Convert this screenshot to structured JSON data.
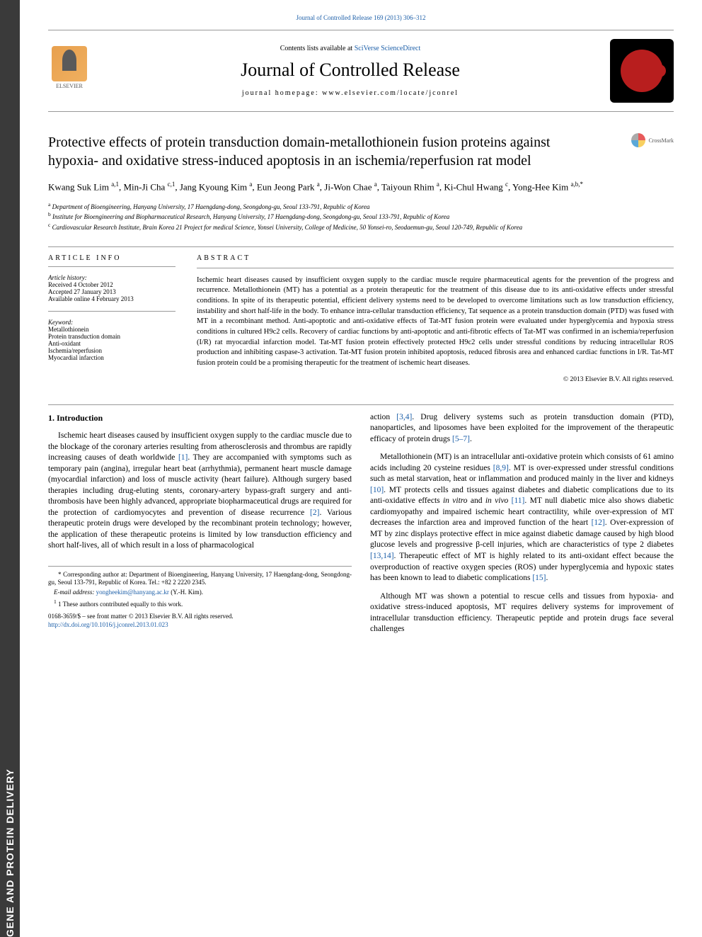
{
  "sideTab": "GENE AND PROTEIN DELIVERY",
  "header": {
    "topLinkPrefix": "Journal of Controlled Release 169 (2013) 306–312",
    "contentsPrefix": "Contents lists available at ",
    "contentsLink": "SciVerse ScienceDirect",
    "journalName": "Journal of Controlled Release",
    "homepagePrefix": "journal homepage: ",
    "homepage": "www.elsevier.com/locate/jconrel",
    "elsevierLabel": "ELSEVIER"
  },
  "crossmark": "CrossMark",
  "title": "Protective effects of protein transduction domain-metallothionein fusion proteins against hypoxia- and oxidative stress-induced apoptosis in an ischemia/reperfusion rat model",
  "authors": "Kwang Suk Lim <sup>a,1</sup>, Min-Ji Cha <sup>c,1</sup>, Jang Kyoung Kim <sup>a</sup>, Eun Jeong Park <sup>a</sup>, Ji-Won Chae <sup>a</sup>, Taiyoun Rhim <sup>a</sup>, Ki-Chul Hwang <sup>c</sup>, Yong-Hee Kim <sup>a,b,*</sup>",
  "affiliations": {
    "a": "Department of Bioengineering, Hanyang University, 17 Haengdang-dong, Seongdong-gu, Seoul 133-791, Republic of Korea",
    "b": "Institute for Bioengineering and Biopharmaceutical Research, Hanyang University, 17 Haengdang-dong, Seongdong-gu, Seoul 133-791, Republic of Korea",
    "c": "Cardiovascular Research Institute, Brain Korea 21 Project for medical Science, Yonsei University, College of Medicine, 50 Yonsei-ro, Seodaemun-gu, Seoul 120-749, Republic of Korea"
  },
  "articleInfo": {
    "heading": "article info",
    "historyLabel": "Article history:",
    "received": "Received 4 October 2012",
    "accepted": "Accepted 27 January 2013",
    "available": "Available online 4 February 2013",
    "keywordLabel": "Keyword:",
    "keywords": [
      "Metallothionein",
      "Protein transduction domain",
      "Anti-oxidant",
      "Ischemia/reperfusion",
      "Myocardial infarction"
    ]
  },
  "abstract": {
    "heading": "abstract",
    "text": "Ischemic heart diseases caused by insufficient oxygen supply to the cardiac muscle require pharmaceutical agents for the prevention of the progress and recurrence. Metallothionein (MT) has a potential as a protein therapeutic for the treatment of this disease due to its anti-oxidative effects under stressful conditions. In spite of its therapeutic potential, efficient delivery systems need to be developed to overcome limitations such as low transduction efficiency, instability and short half-life in the body. To enhance intra-cellular transduction efficiency, Tat sequence as a protein transduction domain (PTD) was fused with MT in a recombinant method. Anti-apoptotic and anti-oxidative effects of Tat-MT fusion protein were evaluated under hyperglycemia and hypoxia stress conditions in cultured H9c2 cells. Recovery of cardiac functions by anti-apoptotic and anti-fibrotic effects of Tat-MT was confirmed in an ischemia/reperfusion (I/R) rat myocardial infarction model. Tat-MT fusion protein effectively protected H9c2 cells under stressful conditions by reducing intracellular ROS production and inhibiting caspase-3 activation. Tat-MT fusion protein inhibited apoptosis, reduced fibrosis area and enhanced cardiac functions in I/R. Tat-MT fusion protein could be a promising therapeutic for the treatment of ischemic heart diseases.",
    "copyright": "© 2013 Elsevier B.V. All rights reserved."
  },
  "body": {
    "introHeading": "1. Introduction",
    "leftP1": "Ischemic heart diseases caused by insufficient oxygen supply to the cardiac muscle due to the blockage of the coronary arteries resulting from atherosclerosis and thrombus are rapidly increasing causes of death worldwide [1]. They are accompanied with symptoms such as temporary pain (angina), irregular heart beat (arrhythmia), permanent heart muscle damage (myocardial infarction) and loss of muscle activity (heart failure). Although surgery based therapies including drug-eluting stents, coronary-artery bypass-graft surgery and anti-thrombosis have been highly advanced, appropriate biopharmaceutical drugs are required for the protection of cardiomyocytes and prevention of disease recurrence [2]. Various therapeutic protein drugs were developed by the recombinant protein technology; however, the application of these therapeutic proteins is limited by low transduction efficiency and short half-lives, all of which result in a loss of pharmacological",
    "rightP1": "action [3,4]. Drug delivery systems such as protein transduction domain (PTD), nanoparticles, and liposomes have been exploited for the improvement of the therapeutic efficacy of protein drugs [5–7].",
    "rightP2": "Metallothionein (MT) is an intracellular anti-oxidative protein which consists of 61 amino acids including 20 cysteine residues [8,9]. MT is over-expressed under stressful conditions such as metal starvation, heat or inflammation and produced mainly in the liver and kidneys [10]. MT protects cells and tissues against diabetes and diabetic complications due to its anti-oxidative effects in vitro and in vivo [11]. MT null diabetic mice also shows diabetic cardiomyopathy and impaired ischemic heart contractility, while over-expression of MT decreases the infarction area and improved function of the heart [12]. Over-expression of MT by zinc displays protective effect in mice against diabetic damage caused by high blood glucose levels and progressive β-cell injuries, which are characteristics of type 2 diabetes [13,14]. Therapeutic effect of MT is highly related to its anti-oxidant effect because the overproduction of reactive oxygen species (ROS) under hyperglycemia and hypoxic states has been known to lead to diabetic complications [15].",
    "rightP3": "Although MT was shown a potential to rescue cells and tissues from hypoxia- and oxidative stress-induced apoptosis, MT requires delivery systems for improvement of intracellular transduction efficiency. Therapeutic peptide and protein drugs face several challenges"
  },
  "footnotes": {
    "corr": "* Corresponding author at: Department of Bioengineering, Hanyang University, 17 Haengdang-dong, Seongdong-gu, Seoul 133-791, Republic of Korea. Tel.: +82 2 2220 2345.",
    "emailLabel": "E-mail address: ",
    "email": "yongheekim@hanyang.ac.kr",
    "emailSuffix": " (Y.-H. Kim).",
    "equal": "1 These authors contributed equally to this work."
  },
  "footer": {
    "line1": "0168-3659/$ – see front matter © 2013 Elsevier B.V. All rights reserved.",
    "doi": "http://dx.doi.org/10.1016/j.jconrel.2013.01.023"
  },
  "colors": {
    "link": "#1b5ea8",
    "sideTabBg": "#3a3a3a",
    "jcrBg": "#000000",
    "jcrCircle": "#b81e1e",
    "elsevierGradStart": "#e8a04e",
    "elsevierGradEnd": "#f0b060"
  }
}
